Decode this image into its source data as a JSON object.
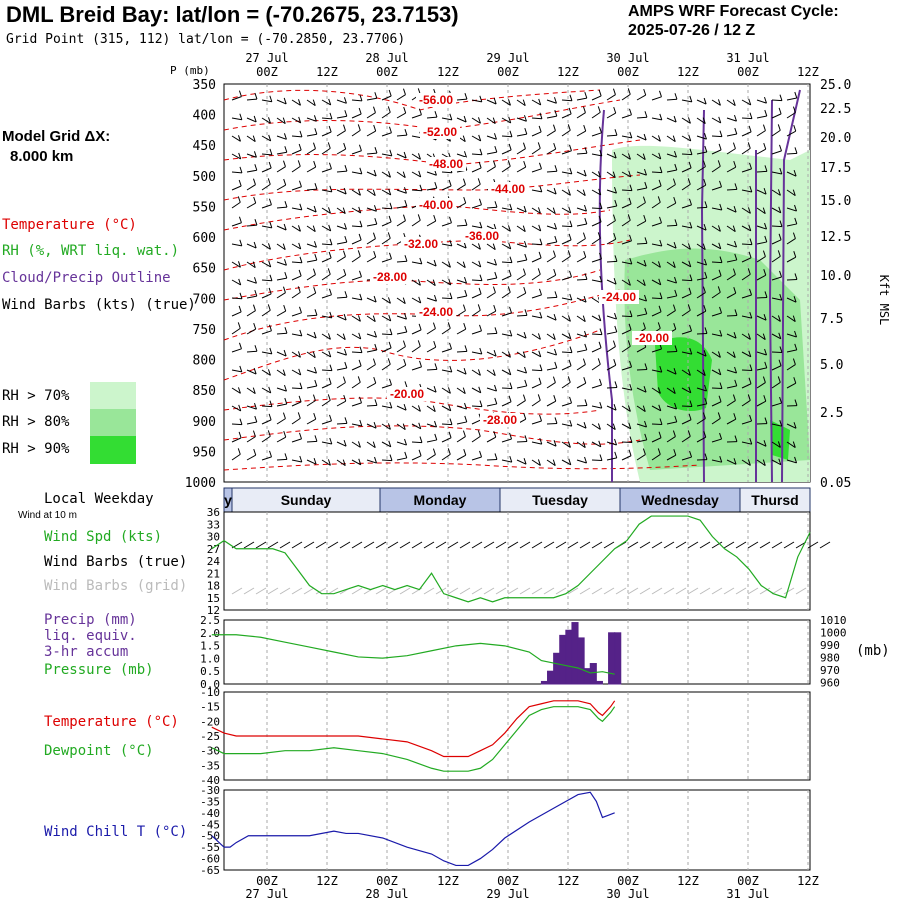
{
  "header": {
    "title": "DML Breid Bay:  lat/lon = (-70.2675, 23.7153)",
    "grid_point": "Grid Point (315, 112) lat/lon = (-70.2850, 23.7706)",
    "cycle_label": "AMPS WRF Forecast Cycle:",
    "cycle_value": "2025-07-26 / 12  Z"
  },
  "legend": {
    "model_grid_label": "Model Grid ΔX:",
    "model_grid_value": "8.000 km",
    "temperature": "Temperature (°C)",
    "rh": "RH (%, WRT liq. wat.)",
    "cloud": "Cloud/Precip Outline",
    "wind": "Wind Barbs (kts) (true)",
    "rh70": "RH > 70%",
    "rh80": "RH > 80%",
    "rh90": "RH > 90%",
    "colors": {
      "temp": "#dd0000",
      "rh": "#22aa22",
      "cloud": "#663399",
      "rh70": "#ccf5cc",
      "rh80": "#99e699",
      "rh90": "#33dd33"
    }
  },
  "time_axis": {
    "ticks": [
      "00Z",
      "12Z",
      "00Z",
      "12Z",
      "00Z",
      "12Z",
      "00Z",
      "12Z",
      "00Z",
      "12Z"
    ],
    "dates": [
      "27 Jul",
      "28 Jul",
      "29 Jul",
      "30 Jul",
      "31 Jul"
    ],
    "weekday_label": "Local Weekday",
    "weekdays": [
      "y",
      "Sunday",
      "Monday",
      "Tuesday",
      "Wednesday",
      "Thursd"
    ]
  },
  "chart_data": [
    {
      "type": "heatmap",
      "name": "cross_section",
      "ylabel_left": "P (mb)",
      "ylabel_right": "Kft MSL",
      "pressure_ticks": [
        350,
        400,
        450,
        500,
        550,
        600,
        650,
        700,
        750,
        800,
        850,
        900,
        950,
        1000
      ],
      "height_ticks": [
        "25.0",
        "22.5",
        "20.0",
        "17.5",
        "15.0",
        "12.5",
        "10.0",
        "7.5",
        "5.0",
        "2.5",
        "0.05"
      ],
      "temperature_labels": [
        "-56.00",
        "-52.00",
        "-48.00",
        "-44.00",
        "-40.00",
        "-36.00",
        "-32.00",
        "-28.00",
        "-24.00",
        "-24.00",
        "-20.00",
        "-20.00",
        "-28.00"
      ]
    },
    {
      "type": "line",
      "name": "surface_wind",
      "labels": [
        "Wind at 10 m",
        "Wind Spd (kts)",
        "Wind Barbs (true)",
        "Wind Barbs (grid)"
      ],
      "yticks": [
        36,
        33,
        30,
        27,
        24,
        21,
        18,
        15,
        12
      ],
      "ylim": [
        12,
        36
      ],
      "x_hours": [
        0,
        6,
        12,
        18,
        24,
        30,
        36,
        42,
        48,
        54,
        60,
        66,
        72,
        78,
        84,
        90,
        96,
        102,
        108,
        114,
        120,
        126,
        132,
        138,
        144,
        150,
        156,
        162,
        168,
        174,
        180,
        186,
        192,
        198,
        204,
        210,
        216,
        222,
        228,
        234,
        240,
        246,
        252,
        258,
        264,
        270,
        276,
        282,
        288,
        294
      ],
      "wind_speed": [
        27,
        29,
        27,
        27,
        27,
        27,
        26,
        22,
        18,
        16,
        16,
        17,
        18,
        17,
        18,
        17,
        18,
        17,
        21,
        16,
        15,
        14,
        15,
        14,
        15,
        15,
        15,
        15,
        15,
        16,
        18,
        21,
        24,
        27,
        29,
        33,
        35,
        35,
        35,
        35,
        34,
        30,
        27,
        25,
        22,
        18,
        16,
        15,
        25,
        31
      ]
    },
    {
      "type": "bar",
      "name": "precip_pressure",
      "labels": [
        "Precip (mm)",
        "liq. equiv.",
        "3-hr accum",
        "Pressure (mb)",
        "(mb)"
      ],
      "yticks_left": [
        "2.5",
        "2.0",
        "1.5",
        "1.0",
        "0.5",
        "0.0"
      ],
      "yticks_right": [
        1010,
        1000,
        990,
        980,
        970,
        960
      ],
      "precip_hours": [
        126,
        129,
        132,
        135,
        138,
        141,
        144,
        147,
        150,
        153,
        156,
        159,
        162,
        165,
        168,
        171,
        174,
        177,
        180,
        183,
        186,
        189,
        192,
        195,
        198
      ],
      "precip_mm": [
        0,
        0,
        0,
        0,
        0,
        0,
        0,
        0,
        0,
        0,
        0,
        0,
        0.1,
        0.5,
        1.2,
        1.9,
        2.1,
        2.4,
        1.8,
        0.6,
        0.8,
        0.1,
        0,
        2.0,
        2.0
      ],
      "pressure_hours": [
        0,
        12,
        24,
        36,
        48,
        60,
        72,
        84,
        96,
        108,
        120,
        132,
        144,
        156,
        162,
        168,
        174,
        180,
        186,
        192,
        198
      ],
      "pressure_mb": [
        1000,
        1000,
        998,
        994,
        990,
        986,
        982,
        981,
        983,
        987,
        991,
        993,
        991,
        986,
        979,
        977,
        975,
        973,
        969,
        970,
        968
      ]
    },
    {
      "type": "line",
      "name": "temperature_dewpoint",
      "labels": [
        "Temperature (°C)",
        "Dewpoint (°C)"
      ],
      "yticks": [
        -10,
        -15,
        -20,
        -25,
        -30,
        -35,
        -40
      ],
      "x_hours": [
        0,
        6,
        12,
        18,
        24,
        36,
        48,
        60,
        72,
        84,
        96,
        108,
        114,
        120,
        126,
        132,
        138,
        144,
        150,
        156,
        162,
        168,
        174,
        180,
        186,
        190,
        192,
        196,
        198
      ],
      "temperature": [
        -22,
        -24,
        -25,
        -25,
        -25,
        -25,
        -25,
        -25,
        -25,
        -26,
        -27,
        -30,
        -32,
        -32,
        -32,
        -30,
        -28,
        -24,
        -19,
        -15,
        -14,
        -13,
        -13,
        -13,
        -14,
        -17,
        -18,
        -15,
        -13
      ],
      "dewpoint": [
        -29,
        -31,
        -31,
        -31,
        -31,
        -30,
        -30,
        -29,
        -30,
        -31,
        -33,
        -36,
        -37,
        -37,
        -37,
        -36,
        -33,
        -28,
        -23,
        -18,
        -16,
        -15,
        -15,
        -15,
        -16,
        -19,
        -20,
        -17,
        -15
      ]
    },
    {
      "type": "line",
      "name": "wind_chill",
      "labels": [
        "Wind Chill T (°C)"
      ],
      "yticks": [
        -30,
        -35,
        -40,
        -45,
        -50,
        -55,
        -60,
        -65
      ],
      "x_hours": [
        0,
        6,
        9,
        12,
        18,
        24,
        36,
        48,
        60,
        66,
        72,
        84,
        96,
        108,
        114,
        120,
        126,
        132,
        138,
        144,
        156,
        168,
        180,
        186,
        189,
        192,
        195,
        198
      ],
      "wind_chill": [
        -50,
        -55,
        -55,
        -53,
        -50,
        -50,
        -50,
        -50,
        -48,
        -49,
        -49,
        -51,
        -55,
        -58,
        -61,
        -63,
        -63,
        -60,
        -56,
        -51,
        -44,
        -38,
        -32,
        -31,
        -35,
        -42,
        -41,
        -40
      ]
    }
  ]
}
